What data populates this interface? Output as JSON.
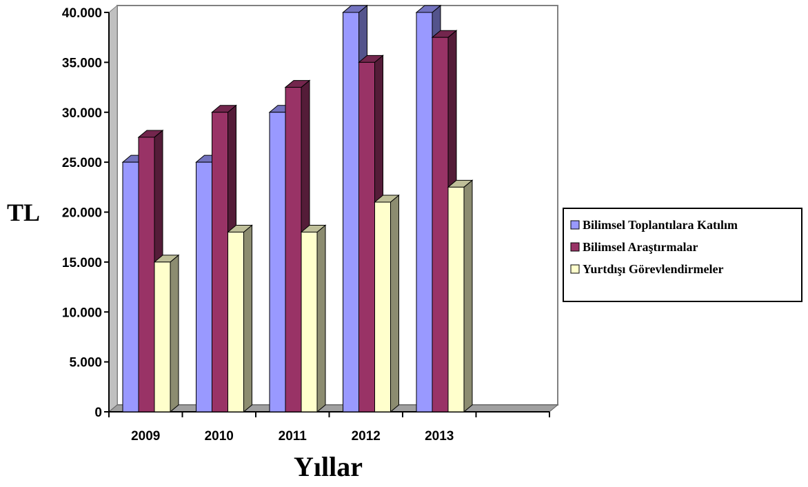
{
  "chart_data": {
    "type": "bar",
    "title": "",
    "xlabel": "Yıllar",
    "ylabel": "TL",
    "categories": [
      "2009",
      "2010",
      "2011",
      "2012",
      "2013"
    ],
    "series": [
      {
        "name": "Bilimsel Toplantılara Katılım",
        "values": [
          25000,
          25000,
          30000,
          40000,
          40000
        ],
        "color": "#9999ff"
      },
      {
        "name": "Bilimsel Araştırmalar",
        "values": [
          27500,
          30000,
          32500,
          35000,
          37500
        ],
        "color": "#993366"
      },
      {
        "name": "Yurtdışı Görevlendirmeler",
        "values": [
          15000,
          18000,
          18000,
          21000,
          22500
        ],
        "color": "#ffffcc"
      }
    ],
    "ylim": [
      0,
      40000
    ],
    "yticks": [
      0,
      5000,
      10000,
      15000,
      20000,
      25000,
      30000,
      35000,
      40000
    ],
    "ytick_labels": [
      "0",
      "5.000",
      "10.000",
      "15.000",
      "20.000",
      "25.000",
      "30.000",
      "35.000",
      "40.000"
    ],
    "grid": false,
    "legend_position": "right",
    "style": "3d-clustered-column"
  }
}
